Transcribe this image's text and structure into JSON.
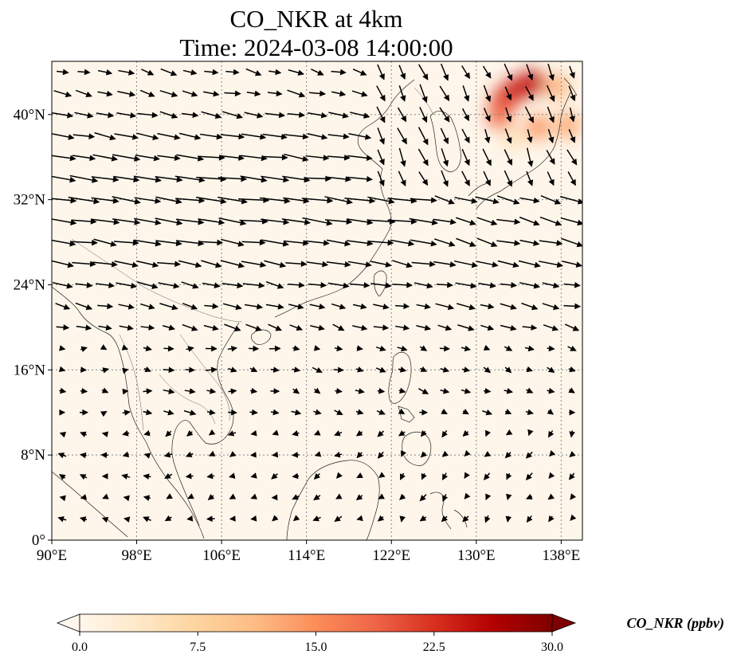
{
  "chart_data": {
    "type": "map-heatmap-vector",
    "title_line1": "CO_NKR at 4km",
    "title_line2": "Time: 2024-03-08 14:00:00",
    "extent": {
      "lon": [
        90,
        140
      ],
      "lat": [
        0,
        45
      ]
    },
    "lon_ticks": [
      90,
      98,
      106,
      114,
      122,
      130,
      138
    ],
    "lon_tick_labels": [
      "90°E",
      "98°E",
      "106°E",
      "114°E",
      "122°E",
      "130°E",
      "138°E"
    ],
    "lat_ticks": [
      0,
      8,
      16,
      24,
      32,
      40
    ],
    "lat_tick_labels": [
      "0°",
      "8°N",
      "16°N",
      "24°N",
      "32°N",
      "40°N"
    ],
    "grid": true,
    "field": {
      "name": "CO_NKR",
      "units": "ppbv",
      "background_value": 0.4,
      "plumes": [
        {
          "lon": 133.6,
          "lat": 42.3,
          "value": 24
        },
        {
          "lon": 132.5,
          "lat": 41.2,
          "value": 22
        },
        {
          "lon": 135.3,
          "lat": 43.0,
          "value": 25
        },
        {
          "lon": 137.6,
          "lat": 42.6,
          "value": 12
        },
        {
          "lon": 132.2,
          "lat": 39.8,
          "value": 18
        },
        {
          "lon": 135.8,
          "lat": 38.8,
          "value": 14
        },
        {
          "lon": 138.6,
          "lat": 39.0,
          "value": 13
        },
        {
          "lon": 133.5,
          "lat": 37.8,
          "value": 5
        }
      ]
    },
    "colorbar": {
      "label": "CO_NKR (ppbv)",
      "min": 0.0,
      "max": 30.0,
      "extend": "both",
      "ticks": [
        0.0,
        7.5,
        15.0,
        22.5,
        30.0
      ],
      "tick_labels": [
        "0.0",
        "7.5",
        "15.0",
        "22.5",
        "30.0"
      ],
      "colors": [
        "#fff7ec",
        "#fee8c8",
        "#fdd49e",
        "#fdbb84",
        "#fc8d59",
        "#ef6548",
        "#d7301f",
        "#b30000",
        "#7f0000"
      ]
    },
    "wind": {
      "description": "westerly winds north of 20N, strongest 28-40N, southwest flow over Korea/Japan, weak northeasterly trades south of 16N",
      "spacing_deg": 2
    }
  }
}
